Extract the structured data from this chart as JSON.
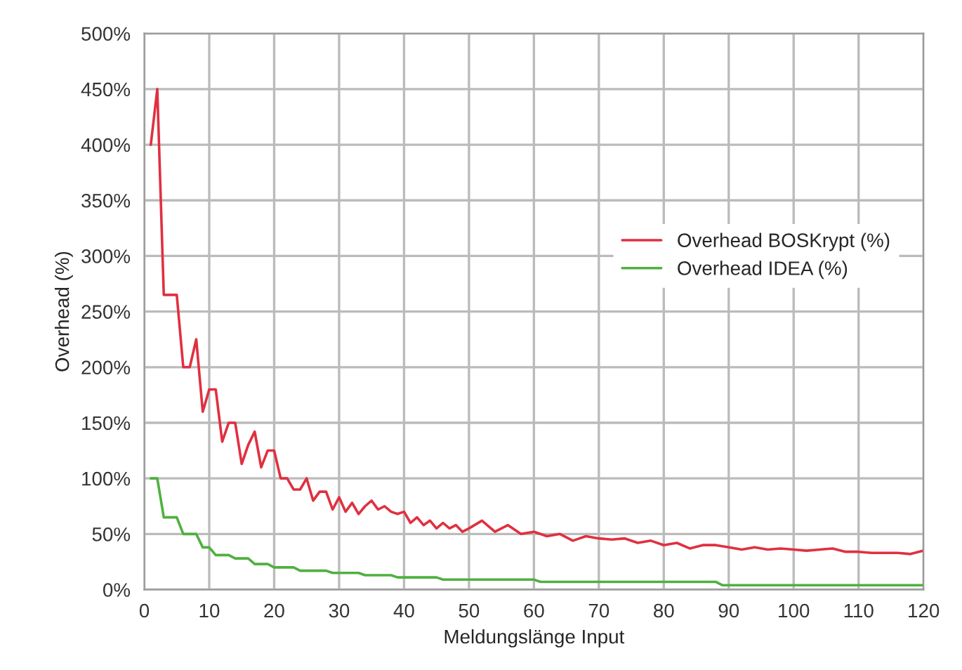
{
  "chart_data": {
    "type": "line",
    "xlabel": "Meldungslänge Input",
    "ylabel": "Overhead (%)",
    "xlim": [
      0,
      120
    ],
    "xticks": [
      0,
      10,
      20,
      30,
      40,
      50,
      60,
      70,
      80,
      90,
      100,
      110,
      120
    ],
    "ylim": [
      0,
      500
    ],
    "yticks": [
      {
        "value": 0,
        "label": "0%"
      },
      {
        "value": 50,
        "label": "50%"
      },
      {
        "value": 100,
        "label": "100%"
      },
      {
        "value": 150,
        "label": "150%"
      },
      {
        "value": 200,
        "label": "200%"
      },
      {
        "value": 250,
        "label": "250%"
      },
      {
        "value": 300,
        "label": "300%"
      },
      {
        "value": 350,
        "label": "350%"
      },
      {
        "value": 400,
        "label": "400%"
      },
      {
        "value": 450,
        "label": "450%"
      },
      {
        "value": 500,
        "label": "500%"
      }
    ],
    "grid": true,
    "legend": "right",
    "line_style": "solid",
    "marker": "none",
    "series": [
      {
        "name": "Overhead BOSKrypt (%)",
        "color": "#e03040",
        "x": [
          1,
          2,
          3,
          4,
          5,
          6,
          7,
          8,
          9,
          10,
          11,
          12,
          13,
          14,
          15,
          16,
          17,
          18,
          19,
          20,
          21,
          22,
          23,
          24,
          25,
          26,
          27,
          28,
          29,
          30,
          31,
          32,
          33,
          34,
          35,
          36,
          37,
          38,
          39,
          40,
          41,
          42,
          43,
          44,
          45,
          46,
          47,
          48,
          49,
          50,
          52,
          54,
          56,
          58,
          60,
          62,
          64,
          66,
          68,
          70,
          72,
          74,
          76,
          78,
          80,
          82,
          84,
          86,
          88,
          90,
          92,
          94,
          96,
          98,
          100,
          102,
          104,
          106,
          108,
          110,
          112,
          114,
          116,
          118,
          120
        ],
        "values": [
          400,
          450,
          265,
          265,
          265,
          200,
          200,
          225,
          160,
          180,
          180,
          133,
          150,
          150,
          113,
          130,
          142,
          110,
          125,
          125,
          100,
          100,
          90,
          90,
          100,
          80,
          88,
          88,
          72,
          83,
          70,
          78,
          68,
          75,
          80,
          72,
          75,
          70,
          68,
          70,
          60,
          65,
          58,
          62,
          55,
          60,
          55,
          58,
          52,
          55,
          62,
          52,
          58,
          50,
          52,
          48,
          50,
          44,
          48,
          46,
          45,
          46,
          42,
          44,
          40,
          42,
          37,
          40,
          40,
          38,
          36,
          38,
          36,
          37,
          36,
          35,
          36,
          37,
          34,
          34,
          33,
          33,
          33,
          32,
          35
        ]
      },
      {
        "name": "Overhead IDEA (%)",
        "color": "#50b040",
        "x": [
          1,
          2,
          3,
          5,
          6,
          8,
          9,
          10,
          11,
          13,
          14,
          16,
          17,
          19,
          20,
          23,
          24,
          28,
          29,
          33,
          34,
          38,
          39,
          45,
          46,
          60,
          61,
          88,
          89,
          120
        ],
        "values": [
          100,
          100,
          65,
          65,
          50,
          50,
          38,
          38,
          31,
          31,
          28,
          28,
          23,
          23,
          20,
          20,
          17,
          17,
          15,
          15,
          13,
          13,
          11,
          11,
          9,
          9,
          7,
          7,
          4,
          4
        ]
      }
    ]
  }
}
